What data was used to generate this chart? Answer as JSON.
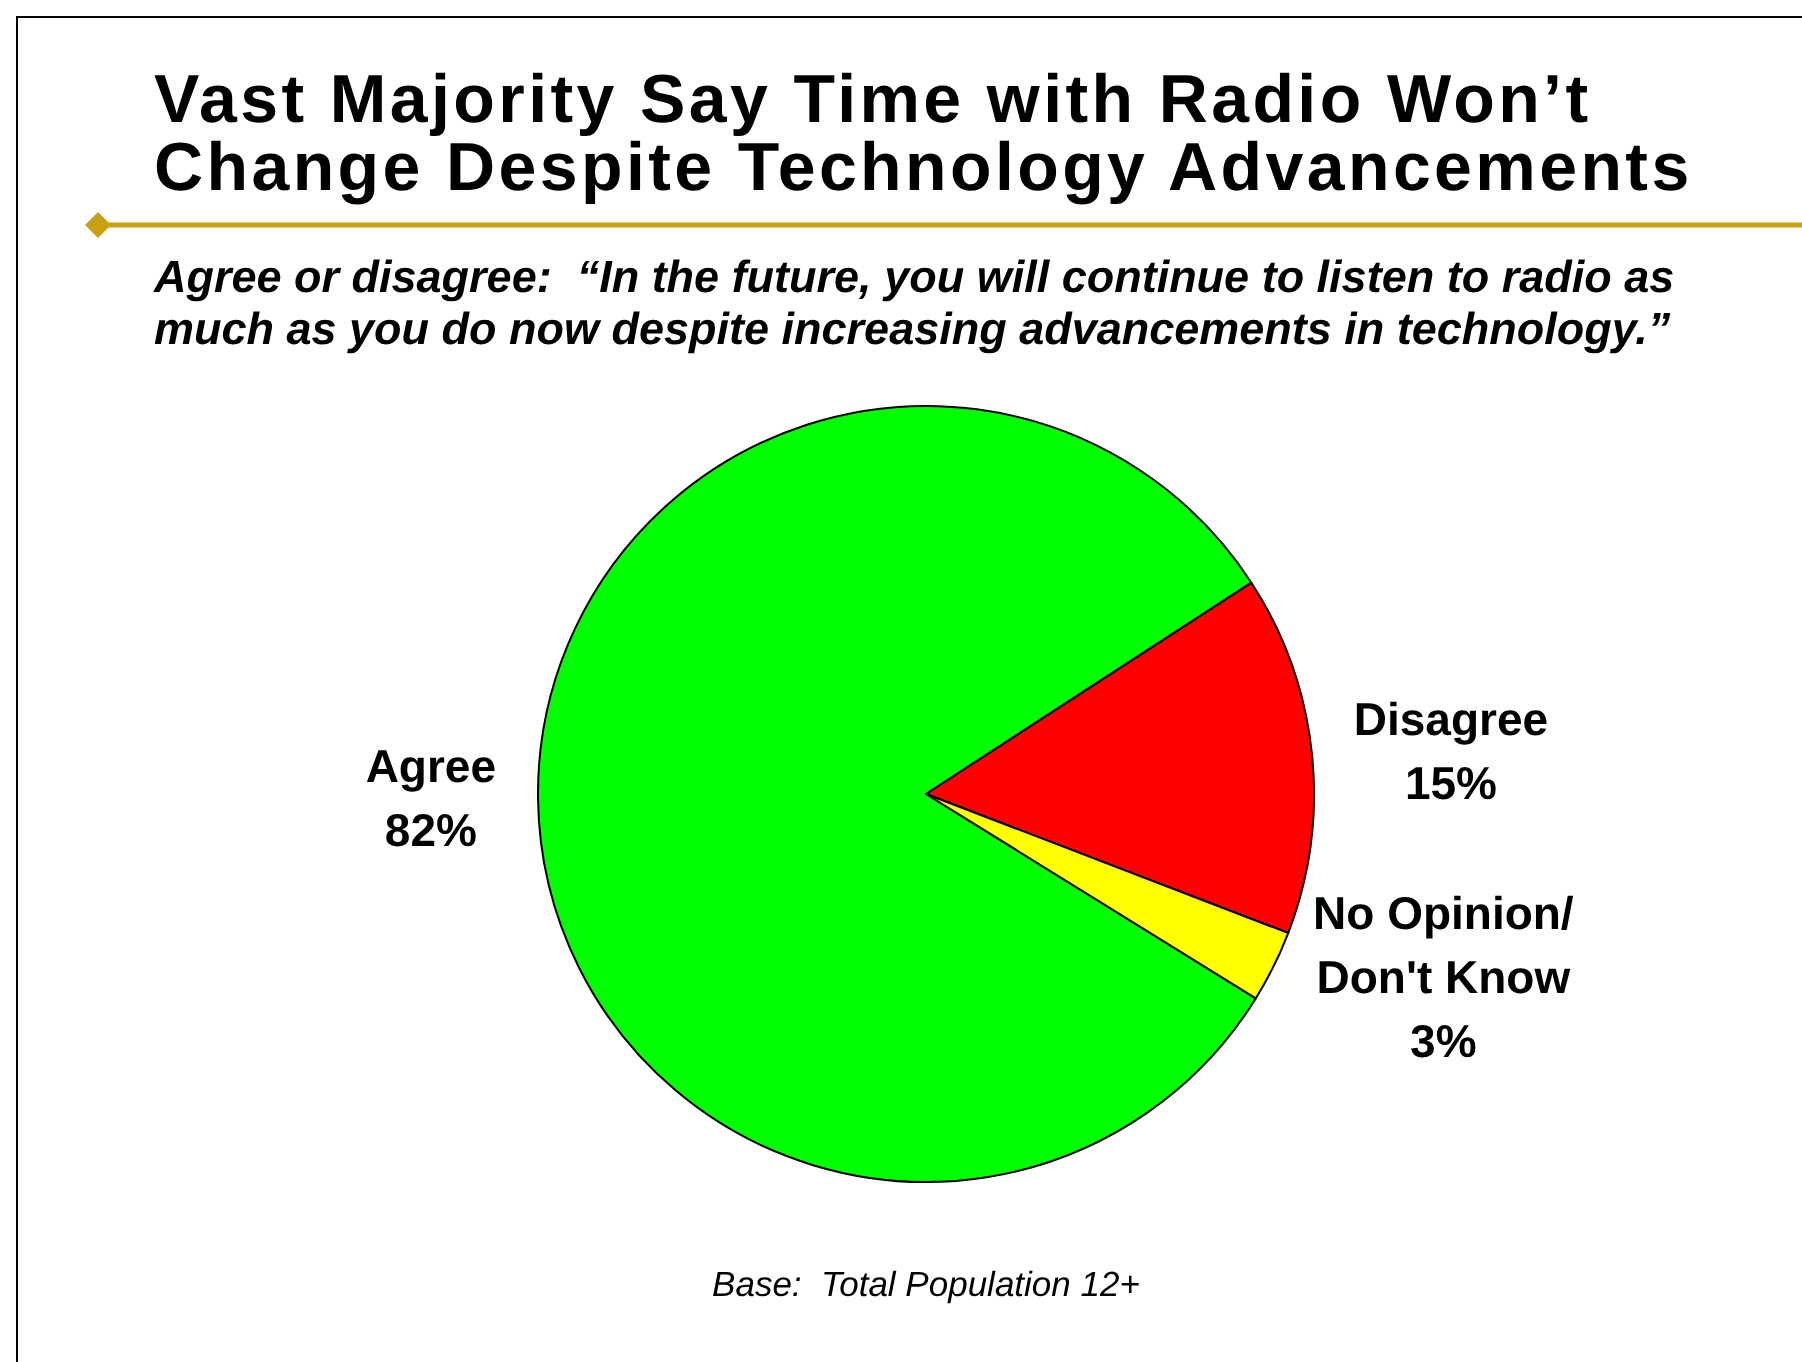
{
  "chart_data": {
    "type": "pie",
    "title": "Vast Majority Say Time with Radio Won’t Change Despite Technology Advancements",
    "subtitle": "Agree or disagree:  “In the future, you will continue to listen to radio as much as you do now despite increasing advancements in technology.”",
    "categories": [
      "Agree",
      "Disagree",
      "No Opinion/Don't Know"
    ],
    "values": [
      82,
      15,
      3
    ],
    "value_labels": [
      "82%",
      "15%",
      "3%"
    ],
    "colors": [
      "#00ff00",
      "#ff0000",
      "#ffff00"
    ],
    "annotations": [
      "Base:  Total Population 12+"
    ]
  }
}
